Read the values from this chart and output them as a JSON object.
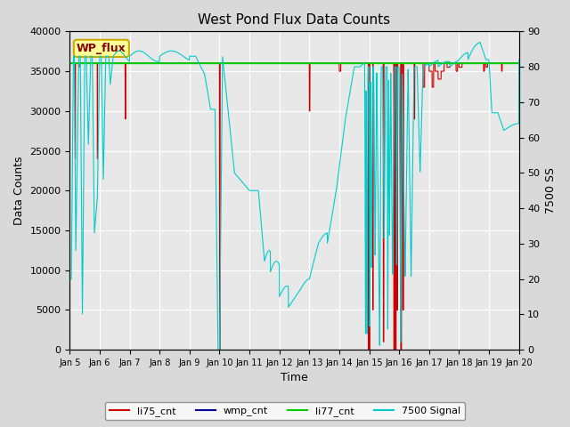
{
  "title": "West Pond Flux Data Counts",
  "xlabel": "Time",
  "ylabel_left": "Data Counts",
  "ylabel_right": "7500 SS",
  "legend_label": "WP_flux",
  "ylim_left": [
    0,
    40000
  ],
  "ylim_right": [
    0,
    90
  ],
  "tick_dates": [
    5,
    6,
    7,
    8,
    9,
    10,
    11,
    12,
    13,
    14,
    15,
    16,
    17,
    18,
    19,
    20
  ],
  "tick_labels": [
    "Jan 5",
    "Jan 6",
    "Jan 7",
    "Jan 8",
    "Jan 9",
    "Jan 10",
    "Jan 11",
    "Jan 12",
    "Jan 13",
    "Jan 14",
    "Jan 15",
    "Jan 16",
    "Jan 17",
    "Jan 18",
    "Jan 19",
    "Jan 20"
  ],
  "li75_color": "#cc0000",
  "wmp_color": "#000099",
  "li77_color": "#00cc00",
  "signal7500_color": "#00cccc",
  "fig_facecolor": "#d9d9d9",
  "ax_facecolor": "#e8e8e8",
  "legend_box_facecolor": "#ffff99",
  "legend_box_edgecolor": "#ccaa00",
  "grid_color": "white"
}
